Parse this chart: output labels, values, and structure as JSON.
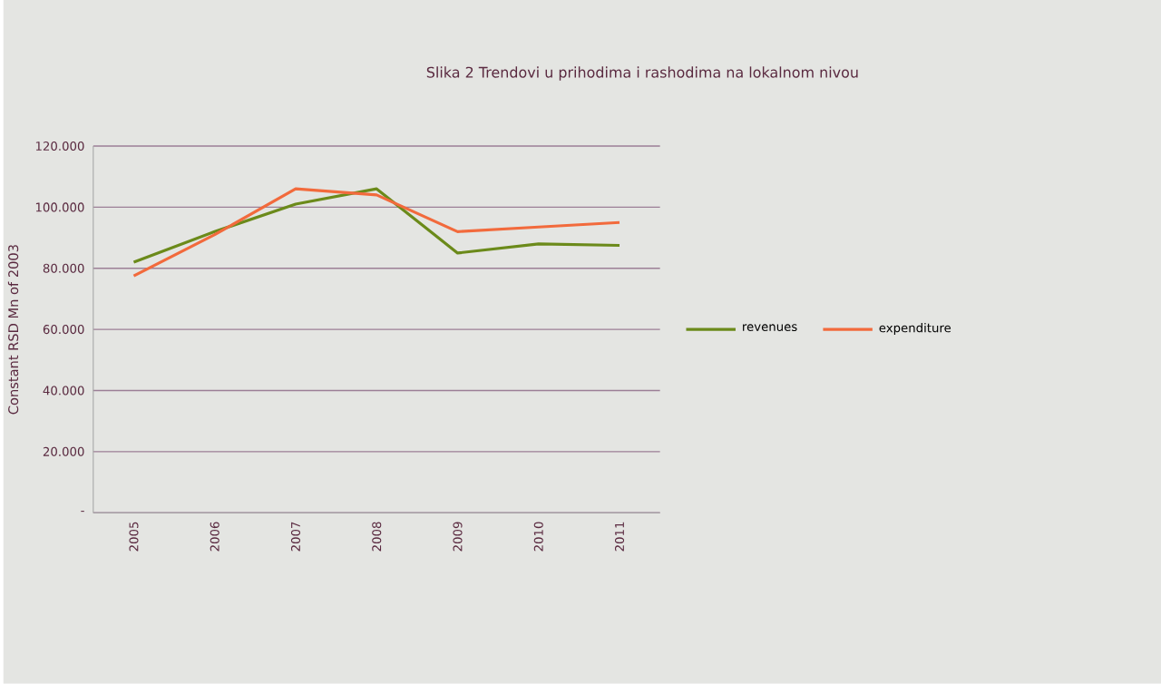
{
  "chart_data": {
    "type": "line",
    "title": "Slika 2 Trendovi u prihodima i rashodima na lokalnom nivou",
    "ylabel": "Constant RSD Mn of 2003",
    "categories": [
      "2005",
      "2006",
      "2007",
      "2008",
      "2009",
      "2010",
      "2011"
    ],
    "series": [
      {
        "name": "revenues",
        "color": "#6b8a1a",
        "values": [
          82000,
          92000,
          101000,
          106000,
          85000,
          88000,
          87500
        ]
      },
      {
        "name": "expenditure",
        "color": "#f26a3c",
        "values": [
          77500,
          91000,
          106000,
          104000,
          92000,
          93500,
          95000
        ]
      }
    ],
    "ylim": [
      0,
      120000
    ],
    "yticks": [
      {
        "value": 0,
        "label": "-"
      },
      {
        "value": 20000,
        "label": "20.000"
      },
      {
        "value": 40000,
        "label": "40.000"
      },
      {
        "value": 60000,
        "label": "60.000"
      },
      {
        "value": 80000,
        "label": "80.000"
      },
      {
        "value": 100000,
        "label": "100.000"
      },
      {
        "value": 120000,
        "label": "120.000"
      }
    ],
    "grid": "y",
    "legend": "right",
    "marker": "none",
    "line_style": "solid"
  }
}
